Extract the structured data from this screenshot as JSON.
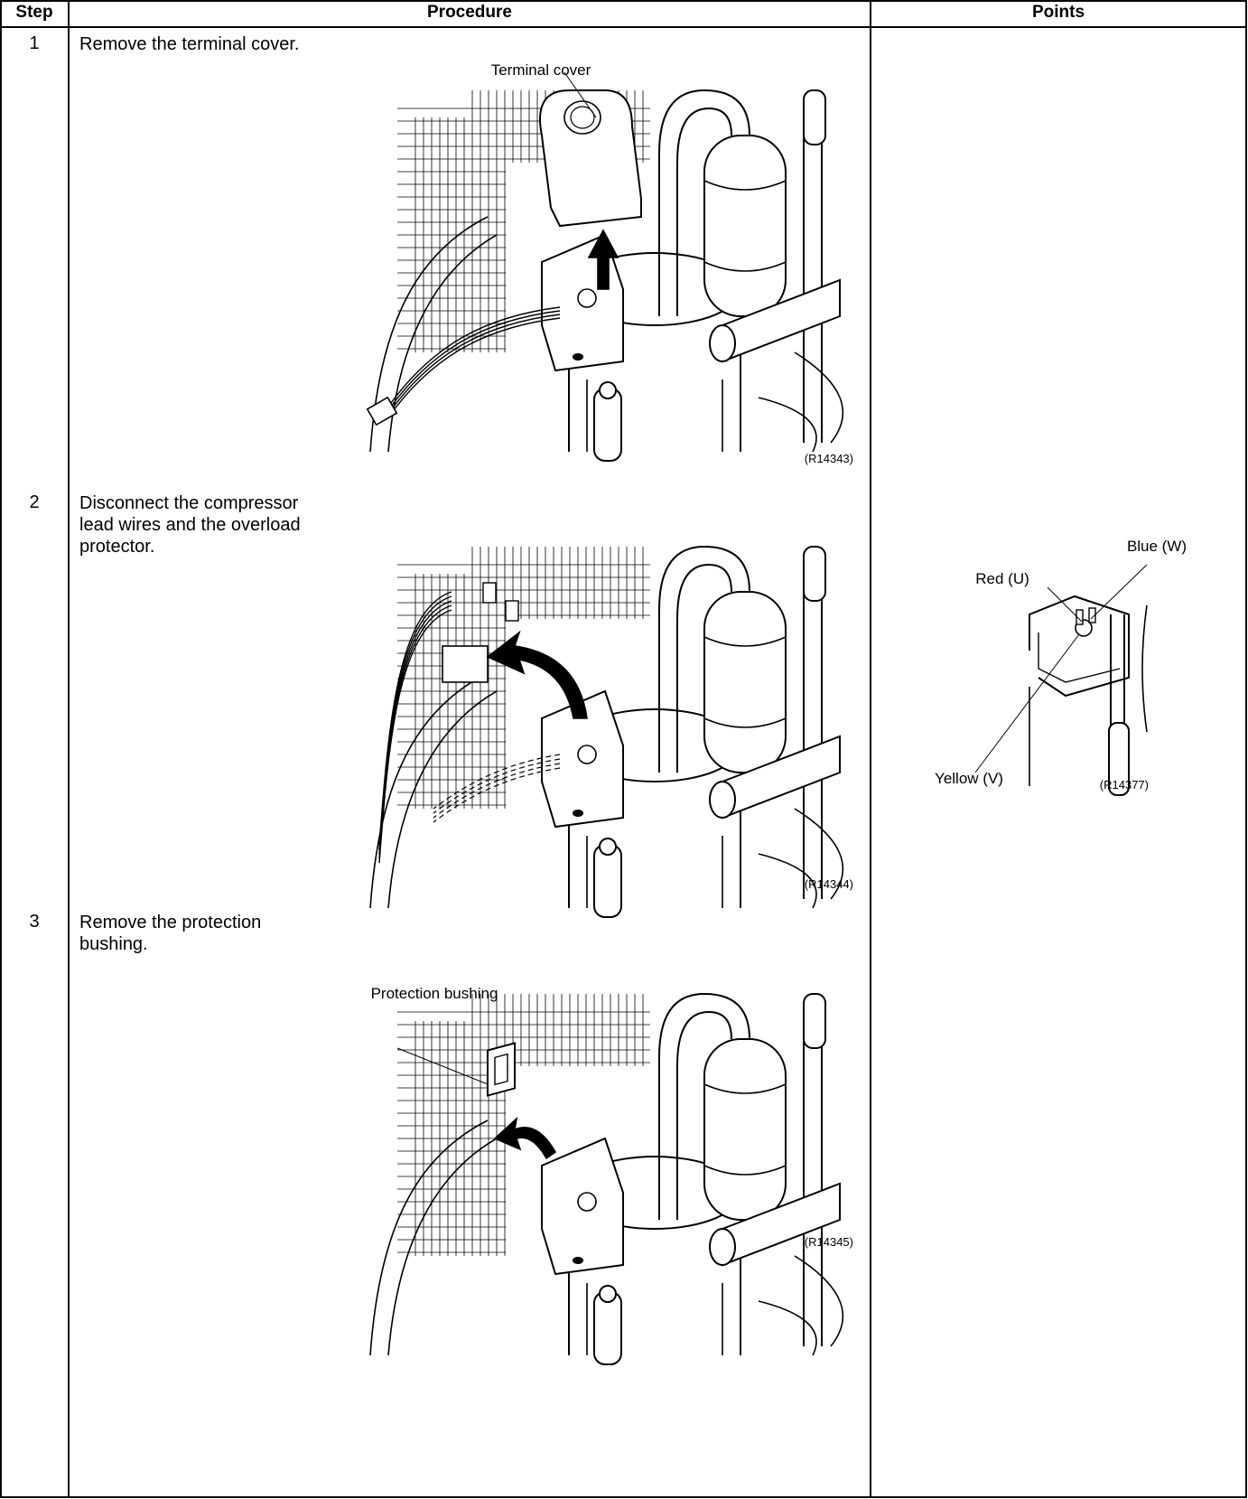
{
  "table": {
    "headers": [
      "Step",
      "Procedure",
      "Points"
    ],
    "rows": [
      {
        "step": "1",
        "procedure": "Remove the terminal cover.",
        "figure": {
          "labels": [
            "Terminal cover"
          ],
          "code": "(R14343)"
        }
      },
      {
        "step": "2",
        "procedure": "Disconnect the compressor lead wires and the overload protector.",
        "figure": {
          "code": "(R14344)"
        },
        "points_figure": {
          "labels": [
            "Red (U)",
            "Blue (W)",
            "Yellow (V)"
          ],
          "code": "(R14377)"
        }
      },
      {
        "step": "3",
        "procedure": "Remove the protection bushing.",
        "figure": {
          "labels": [
            "Protection bushing"
          ],
          "code": "(R14345)"
        }
      }
    ]
  }
}
